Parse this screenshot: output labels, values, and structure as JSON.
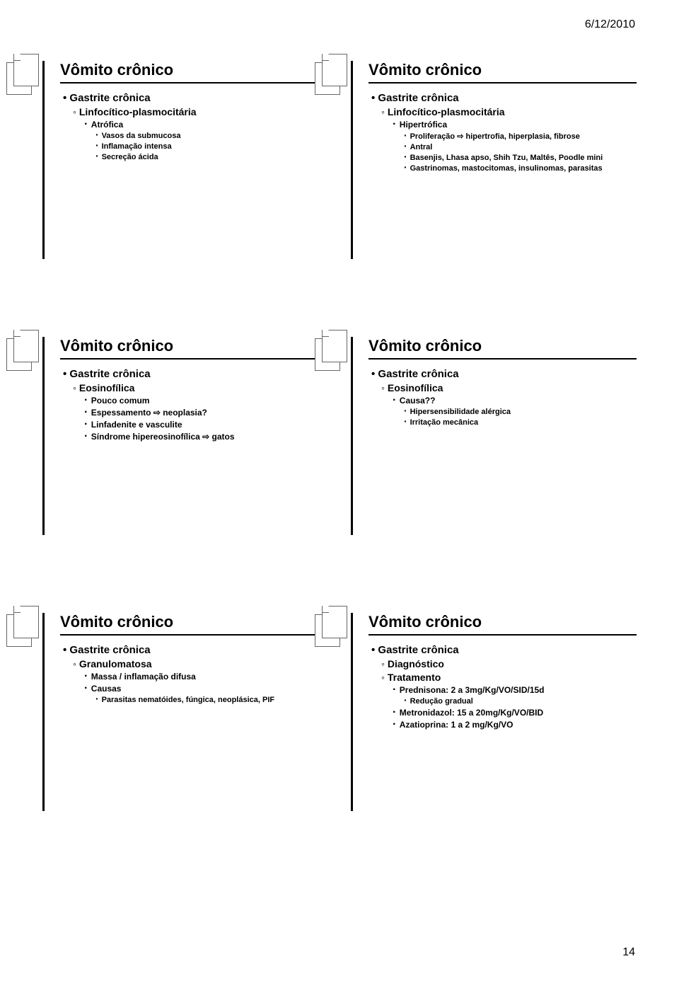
{
  "date": "6/12/2010",
  "page_number": "14",
  "slides": [
    {
      "title": "Vômito crônico",
      "items": [
        {
          "lvl": 1,
          "b": "dot",
          "t": "Gastrite crônica"
        },
        {
          "lvl": 2,
          "b": "ring",
          "t": "Linfocítico-plasmocitária"
        },
        {
          "lvl": 3,
          "b": "dotL3",
          "t": "Atrófica"
        },
        {
          "lvl": 4,
          "b": "dotL4",
          "t": "Vasos da submucosa"
        },
        {
          "lvl": 4,
          "b": "dotL4",
          "t": "Inflamação intensa"
        },
        {
          "lvl": 4,
          "b": "dotL4",
          "t": "Secreção ácida"
        }
      ]
    },
    {
      "title": "Vômito crônico",
      "items": [
        {
          "lvl": 1,
          "b": "dot",
          "t": "Gastrite crônica"
        },
        {
          "lvl": 2,
          "b": "ring",
          "t": "Linfocítico-plasmocitária"
        },
        {
          "lvl": 3,
          "b": "dotL3",
          "t": "Hipertrófica"
        },
        {
          "lvl": 4,
          "b": "dotL4",
          "t": "Proliferação ⇨ hipertrofia, hiperplasia, fibrose"
        },
        {
          "lvl": 4,
          "b": "dotL4",
          "t": "Antral"
        },
        {
          "lvl": 4,
          "b": "dotL4",
          "t": "Basenjis, Lhasa apso, Shih Tzu, Maltês, Poodle mini"
        },
        {
          "lvl": 4,
          "b": "dotL4",
          "t": "Gastrinomas, mastocitomas, insulinomas, parasitas"
        }
      ]
    },
    {
      "title": "Vômito crônico",
      "items": [
        {
          "lvl": 1,
          "b": "dot",
          "t": "Gastrite crônica"
        },
        {
          "lvl": 2,
          "b": "ring",
          "t": "Eosinofílica"
        },
        {
          "lvl": 3,
          "b": "dotL3",
          "t": "Pouco comum"
        },
        {
          "lvl": 3,
          "b": "dotL3",
          "t": "Espessamento ⇨ neoplasia?"
        },
        {
          "lvl": 3,
          "b": "dotL3",
          "t": "Linfadenite e vasculite"
        },
        {
          "lvl": 3,
          "b": "dotL3",
          "t": "Síndrome hipereosinofílica ⇨ gatos"
        }
      ]
    },
    {
      "title": "Vômito crônico",
      "items": [
        {
          "lvl": 1,
          "b": "dot",
          "t": "Gastrite crônica"
        },
        {
          "lvl": 2,
          "b": "ring",
          "t": "Eosinofílica"
        },
        {
          "lvl": 3,
          "b": "dotL3",
          "t": "Causa??"
        },
        {
          "lvl": 4,
          "b": "dotL4",
          "t": "Hipersensibilidade alérgica"
        },
        {
          "lvl": 4,
          "b": "dotL4",
          "t": "Irritação mecânica"
        }
      ]
    },
    {
      "title": "Vômito crônico",
      "items": [
        {
          "lvl": 1,
          "b": "dot",
          "t": "Gastrite crônica"
        },
        {
          "lvl": 2,
          "b": "ring",
          "t": "Granulomatosa"
        },
        {
          "lvl": 3,
          "b": "dotL3",
          "t": "Massa / inflamação difusa"
        },
        {
          "lvl": 3,
          "b": "dotL3",
          "t": "Causas"
        },
        {
          "lvl": 4,
          "b": "dotL4",
          "t": "Parasitas nematóides, fúngica, neoplásica, PIF"
        }
      ]
    },
    {
      "title": "Vômito crônico",
      "items": [
        {
          "lvl": 1,
          "b": "dot",
          "t": "Gastrite crônica"
        },
        {
          "lvl": 2,
          "b": "ring",
          "t": "Diagnóstico"
        },
        {
          "lvl": 2,
          "b": "ring",
          "t": "Tratamento"
        },
        {
          "lvl": 3,
          "b": "dotL3",
          "t": "Prednisona: 2 a 3mg/Kg/VO/SID/15d"
        },
        {
          "lvl": 4,
          "b": "dotL4",
          "t": "Redução gradual"
        },
        {
          "lvl": 3,
          "b": "dotL3",
          "t": "Metronidazol: 15 a 20mg/Kg/VO/BID"
        },
        {
          "lvl": 3,
          "b": "dotL3",
          "t": "Azatioprina: 1 a 2 mg/Kg/VO"
        }
      ]
    }
  ]
}
